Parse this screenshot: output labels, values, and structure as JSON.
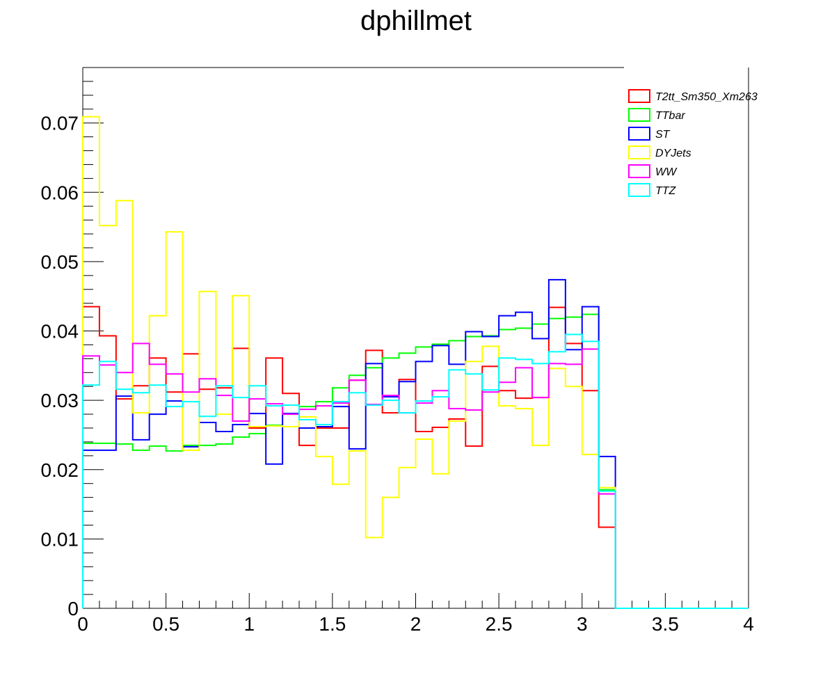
{
  "chart_data": {
    "type": "line",
    "title": "dphillmet",
    "xlabel": "",
    "ylabel": "",
    "xlim": [
      0,
      4
    ],
    "ylim": [
      0,
      0.078
    ],
    "x_ticks": [
      "0",
      "0.5",
      "1",
      "1.5",
      "2",
      "2.5",
      "3",
      "3.5",
      "4"
    ],
    "y_ticks": [
      "0",
      "0.01",
      "0.02",
      "0.03",
      "0.04",
      "0.05",
      "0.06",
      "0.07"
    ],
    "legend_position": "top-right",
    "bin_width": 0.1,
    "bin_edges_start": 0,
    "series": [
      {
        "name": "T2tt_Sm350_Xm263",
        "color": "#ff0000",
        "values": [
          0.0435,
          0.0393,
          0.0302,
          0.0321,
          0.0361,
          0.0312,
          0.0367,
          0.0316,
          0.0318,
          0.0375,
          0.026,
          0.0361,
          0.031,
          0.0235,
          0.026,
          0.026,
          0.0329,
          0.0372,
          0.0282,
          0.033,
          0.0255,
          0.0261,
          0.0273,
          0.0234,
          0.0349,
          0.0314,
          0.0303,
          0.0304,
          0.0434,
          0.0382,
          0.0314,
          0.0117,
          0,
          0,
          0,
          0,
          0,
          0,
          0,
          0
        ]
      },
      {
        "name": "TTbar",
        "color": "#00ff00",
        "values": [
          0.0238,
          0.0238,
          0.0237,
          0.0228,
          0.0234,
          0.0227,
          0.0235,
          0.0235,
          0.0237,
          0.0247,
          0.0252,
          0.0264,
          0.028,
          0.0291,
          0.0298,
          0.0318,
          0.0336,
          0.0347,
          0.0361,
          0.0368,
          0.0377,
          0.0381,
          0.0386,
          0.0392,
          0.0393,
          0.0402,
          0.0404,
          0.041,
          0.0418,
          0.042,
          0.0424,
          0.0171,
          0,
          0,
          0,
          0,
          0,
          0,
          0,
          0
        ]
      },
      {
        "name": "ST",
        "color": "#0000ff",
        "values": [
          0.0228,
          0.0228,
          0.0306,
          0.0243,
          0.028,
          0.0299,
          0.0233,
          0.0268,
          0.0255,
          0.0265,
          0.0281,
          0.0208,
          0.0281,
          0.026,
          0.0262,
          0.0291,
          0.023,
          0.0353,
          0.0305,
          0.0327,
          0.0356,
          0.0379,
          0.0352,
          0.0399,
          0.0392,
          0.0422,
          0.0427,
          0.0389,
          0.0474,
          0.0373,
          0.0435,
          0.0219,
          0,
          0,
          0,
          0,
          0,
          0,
          0,
          0
        ]
      },
      {
        "name": "DYJets",
        "color": "#ffff00",
        "values": [
          0.0709,
          0.0552,
          0.0588,
          0.0282,
          0.0422,
          0.0543,
          0.0228,
          0.0457,
          0.028,
          0.0451,
          0.0262,
          0.0263,
          0.0262,
          0.0276,
          0.0219,
          0.0179,
          0.0227,
          0.0102,
          0.016,
          0.0203,
          0.0244,
          0.0194,
          0.027,
          0.0356,
          0.0378,
          0.0292,
          0.0288,
          0.0235,
          0.0346,
          0.032,
          0.0222,
          0.0174,
          0,
          0,
          0,
          0,
          0,
          0,
          0,
          0
        ]
      },
      {
        "name": "WW",
        "color": "#ff00ff",
        "values": [
          0.0364,
          0.0351,
          0.034,
          0.0382,
          0.0352,
          0.0338,
          0.0312,
          0.0331,
          0.0307,
          0.027,
          0.0302,
          0.0295,
          0.028,
          0.0287,
          0.0292,
          0.0296,
          0.0329,
          0.0294,
          0.0307,
          0.0282,
          0.0296,
          0.0314,
          0.0288,
          0.0286,
          0.0312,
          0.0326,
          0.0347,
          0.0304,
          0.0353,
          0.0352,
          0.0374,
          0.0165,
          0,
          0,
          0,
          0,
          0,
          0,
          0,
          0
        ]
      },
      {
        "name": "TTZ",
        "color": "#00ffff",
        "values": [
          0.0322,
          0.0356,
          0.0316,
          0.0311,
          0.0322,
          0.0291,
          0.0298,
          0.0277,
          0.0321,
          0.0304,
          0.0321,
          0.0292,
          0.0293,
          0.0272,
          0.0265,
          0.0298,
          0.0311,
          0.0293,
          0.03,
          0.0282,
          0.0299,
          0.0305,
          0.0344,
          0.0338,
          0.0315,
          0.0361,
          0.0359,
          0.0353,
          0.037,
          0.0395,
          0.0385,
          0.0169,
          0,
          0,
          0,
          0,
          0,
          0,
          0,
          0
        ]
      }
    ]
  }
}
